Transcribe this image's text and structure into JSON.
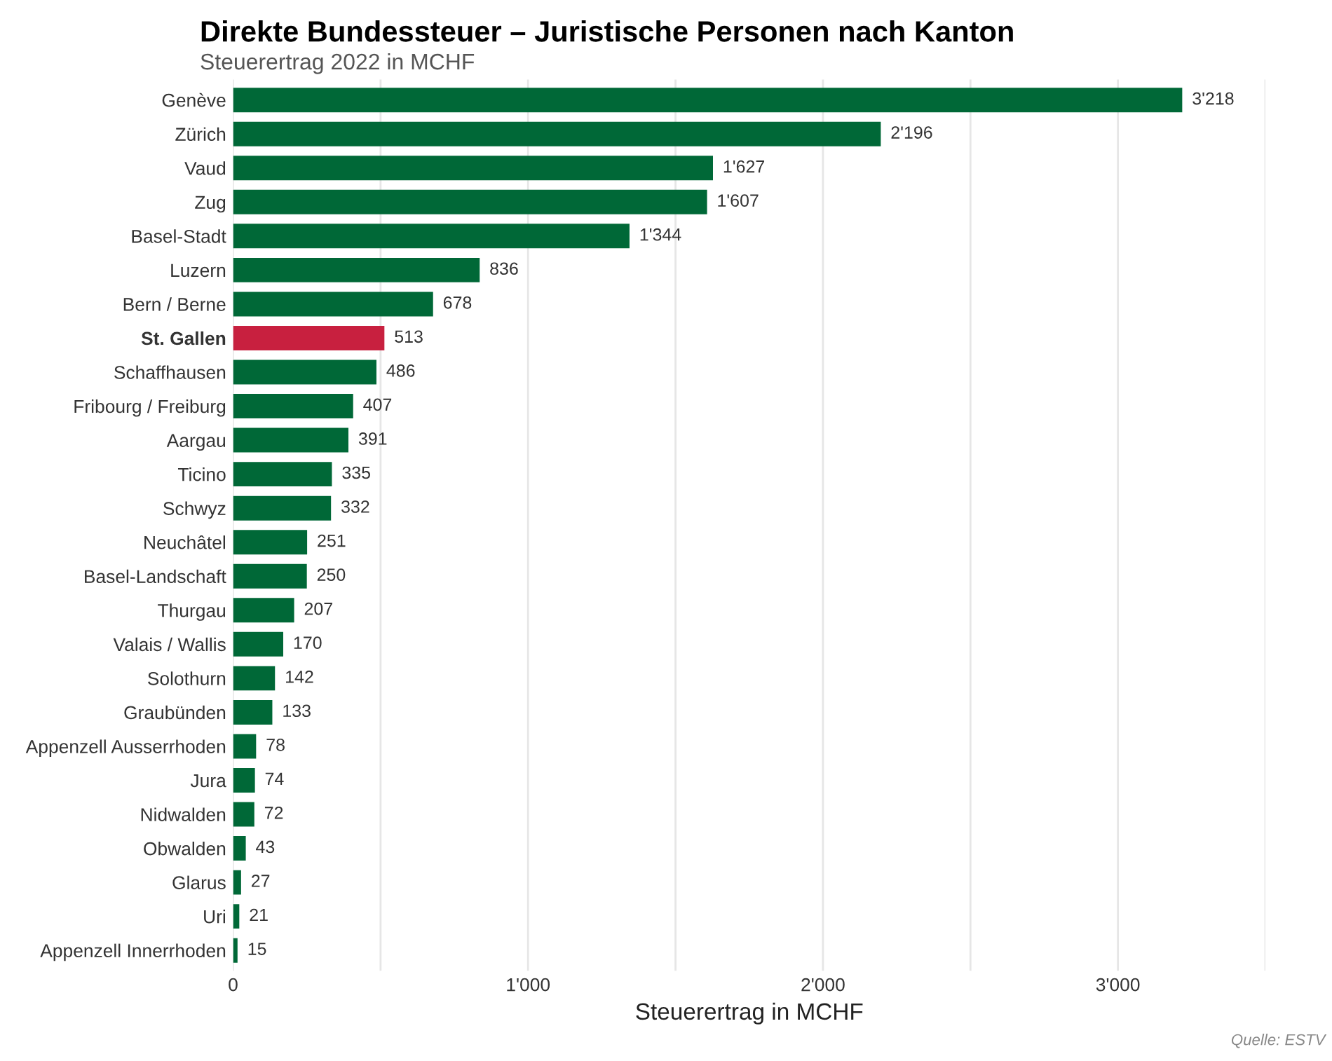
{
  "chart_data": {
    "type": "bar",
    "orientation": "horizontal",
    "title": "Direkte Bundessteuer – Juristische Personen nach Kanton",
    "subtitle": "Steuerertrag 2022 in MCHF",
    "xlabel": "Steuerertrag in MCHF",
    "annotations": [
      "Quelle: ESTV"
    ],
    "categories": [
      "Genève",
      "Zürich",
      "Vaud",
      "Zug",
      "Basel-Stadt",
      "Luzern",
      "Bern / Berne",
      "St. Gallen",
      "Schaffhausen",
      "Fribourg / Freiburg",
      "Aargau",
      "Ticino",
      "Schwyz",
      "Neuchâtel",
      "Basel-Landschaft",
      "Thurgau",
      "Valais / Wallis",
      "Solothurn",
      "Graubünden",
      "Appenzell Ausserrhoden",
      "Jura",
      "Nidwalden",
      "Obwalden",
      "Glarus",
      "Uri",
      "Appenzell Innerrhoden"
    ],
    "values": [
      3218,
      2196,
      1627,
      1607,
      1344,
      836,
      678,
      513,
      486,
      407,
      391,
      335,
      332,
      251,
      250,
      207,
      170,
      142,
      133,
      78,
      74,
      72,
      43,
      27,
      21,
      15
    ],
    "value_labels": [
      "3'218",
      "2'196",
      "1'627",
      "1'607",
      "1'344",
      "836",
      "678",
      "513",
      "486",
      "407",
      "391",
      "335",
      "332",
      "251",
      "250",
      "207",
      "170",
      "142",
      "133",
      "78",
      "74",
      "72",
      "43",
      "27",
      "21",
      "15"
    ],
    "colors": [
      "#006837",
      "#006837",
      "#006837",
      "#006837",
      "#006837",
      "#006837",
      "#006837",
      "#c8203f",
      "#006837",
      "#006837",
      "#006837",
      "#006837",
      "#006837",
      "#006837",
      "#006837",
      "#006837",
      "#006837",
      "#006837",
      "#006837",
      "#006837",
      "#006837",
      "#006837",
      "#006837",
      "#006837",
      "#006837",
      "#006837"
    ],
    "xlim": [
      0,
      3500
    ],
    "xticks": [
      {
        "value": 0,
        "label": "0"
      },
      {
        "value": 500,
        "label": null
      },
      {
        "value": 1000,
        "label": "1'000"
      },
      {
        "value": 1500,
        "label": null
      },
      {
        "value": 2000,
        "label": "2'000"
      },
      {
        "value": 2500,
        "label": null
      },
      {
        "value": 3000,
        "label": "3'000"
      },
      {
        "value": 3500,
        "label": null
      }
    ],
    "grid": "x",
    "legend": false
  }
}
